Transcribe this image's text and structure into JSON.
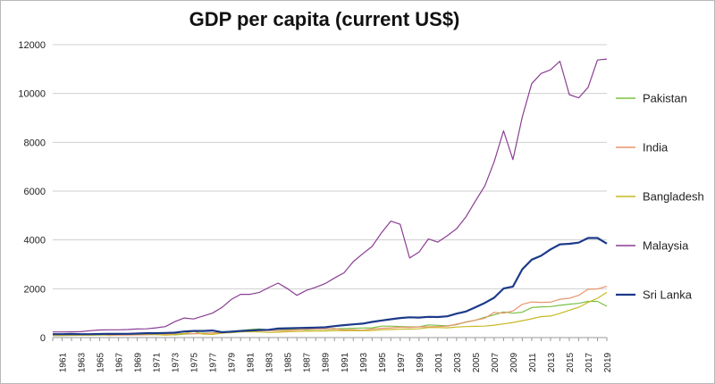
{
  "chart_data": {
    "type": "line",
    "title": "GDP per capita (current US$)",
    "xlabel": "",
    "ylabel": "",
    "xlim": [
      1960,
      2019
    ],
    "ylim": [
      0,
      12000
    ],
    "yticks": [
      0,
      2000,
      4000,
      6000,
      8000,
      10000,
      12000
    ],
    "xticks": [
      1961,
      1963,
      1965,
      1967,
      1969,
      1971,
      1973,
      1975,
      1977,
      1979,
      1981,
      1983,
      1985,
      1987,
      1989,
      1991,
      1993,
      1995,
      1997,
      1999,
      2001,
      2003,
      2005,
      2007,
      2009,
      2011,
      2013,
      2015,
      2017,
      2019
    ],
    "grid": "horizontal",
    "legend_position": "right",
    "x": [
      1960,
      1961,
      1962,
      1963,
      1964,
      1965,
      1966,
      1967,
      1968,
      1969,
      1970,
      1971,
      1972,
      1973,
      1974,
      1975,
      1976,
      1977,
      1978,
      1979,
      1980,
      1981,
      1982,
      1983,
      1984,
      1985,
      1986,
      1987,
      1988,
      1989,
      1990,
      1991,
      1992,
      1993,
      1994,
      1995,
      1996,
      1997,
      1998,
      1999,
      2000,
      2001,
      2002,
      2003,
      2004,
      2005,
      2006,
      2007,
      2008,
      2009,
      2010,
      2011,
      2012,
      2013,
      2014,
      2015,
      2016,
      2017,
      2018,
      2019
    ],
    "series": [
      {
        "name": "Pakistan",
        "color": "#7bc043",
        "width": 1.2,
        "values": [
          80,
          85,
          90,
          95,
          100,
          105,
          115,
          125,
          130,
          140,
          160,
          165,
          150,
          110,
          140,
          160,
          180,
          190,
          210,
          240,
          290,
          330,
          350,
          320,
          330,
          330,
          330,
          320,
          340,
          340,
          350,
          370,
          380,
          390,
          400,
          470,
          470,
          450,
          440,
          440,
          520,
          500,
          480,
          530,
          640,
          710,
          830,
          930,
          1050,
          1000,
          1040,
          1230,
          1260,
          1270,
          1320,
          1370,
          1400,
          1480,
          1480,
          1280
        ]
      },
      {
        "name": "India",
        "color": "#e8956d",
        "width": 1.2,
        "values": [
          85,
          90,
          95,
          100,
          115,
          120,
          90,
          100,
          100,
          110,
          112,
          120,
          125,
          145,
          165,
          160,
          160,
          190,
          205,
          225,
          270,
          275,
          280,
          285,
          280,
          295,
          310,
          340,
          355,
          350,
          370,
          310,
          320,
          300,
          350,
          380,
          400,
          420,
          420,
          440,
          440,
          450,
          470,
          550,
          630,
          710,
          790,
          1030,
          1000,
          1090,
          1360,
          1460,
          1440,
          1450,
          1570,
          1610,
          1730,
          1980,
          1990,
          2100
        ]
      },
      {
        "name": "Bangladesh",
        "color": "#c9b824",
        "width": 1.2,
        "values": [
          90,
          95,
          95,
          100,
          100,
          110,
          115,
          120,
          130,
          130,
          140,
          120,
          100,
          120,
          170,
          260,
          140,
          130,
          180,
          200,
          230,
          240,
          230,
          210,
          220,
          240,
          250,
          260,
          270,
          270,
          290,
          280,
          280,
          280,
          290,
          320,
          330,
          340,
          350,
          360,
          410,
          410,
          400,
          430,
          450,
          460,
          470,
          510,
          560,
          620,
          690,
          770,
          860,
          880,
          990,
          1120,
          1240,
          1440,
          1610,
          1850
        ]
      },
      {
        "name": "Malaysia",
        "color": "#8a3e93",
        "width": 1.2,
        "values": [
          230,
          230,
          235,
          240,
          280,
          310,
          320,
          320,
          330,
          350,
          360,
          400,
          450,
          650,
          800,
          760,
          880,
          1000,
          1230,
          1560,
          1770,
          1770,
          1850,
          2050,
          2230,
          2000,
          1730,
          1930,
          2060,
          2210,
          2440,
          2650,
          3110,
          3430,
          3730,
          4290,
          4770,
          4640,
          3260,
          3500,
          4040,
          3910,
          4170,
          4460,
          4950,
          5590,
          6210,
          7200,
          8470,
          7290,
          9040,
          10400,
          10820,
          10970,
          11320,
          9950,
          9820,
          10250,
          11370,
          11410
        ]
      },
      {
        "name": "Sri Lanka",
        "color": "#1c3a8a",
        "width": 2.2,
        "values": [
          140,
          140,
          145,
          140,
          140,
          145,
          150,
          150,
          155,
          165,
          180,
          180,
          190,
          200,
          250,
          270,
          270,
          290,
          220,
          240,
          270,
          290,
          310,
          320,
          370,
          380,
          390,
          400,
          410,
          420,
          470,
          510,
          540,
          570,
          640,
          700,
          750,
          800,
          830,
          820,
          850,
          840,
          870,
          980,
          1070,
          1240,
          1420,
          1630,
          2010,
          2090,
          2800,
          3190,
          3350,
          3610,
          3820,
          3840,
          3890,
          4080,
          4080,
          3850
        ]
      }
    ]
  }
}
